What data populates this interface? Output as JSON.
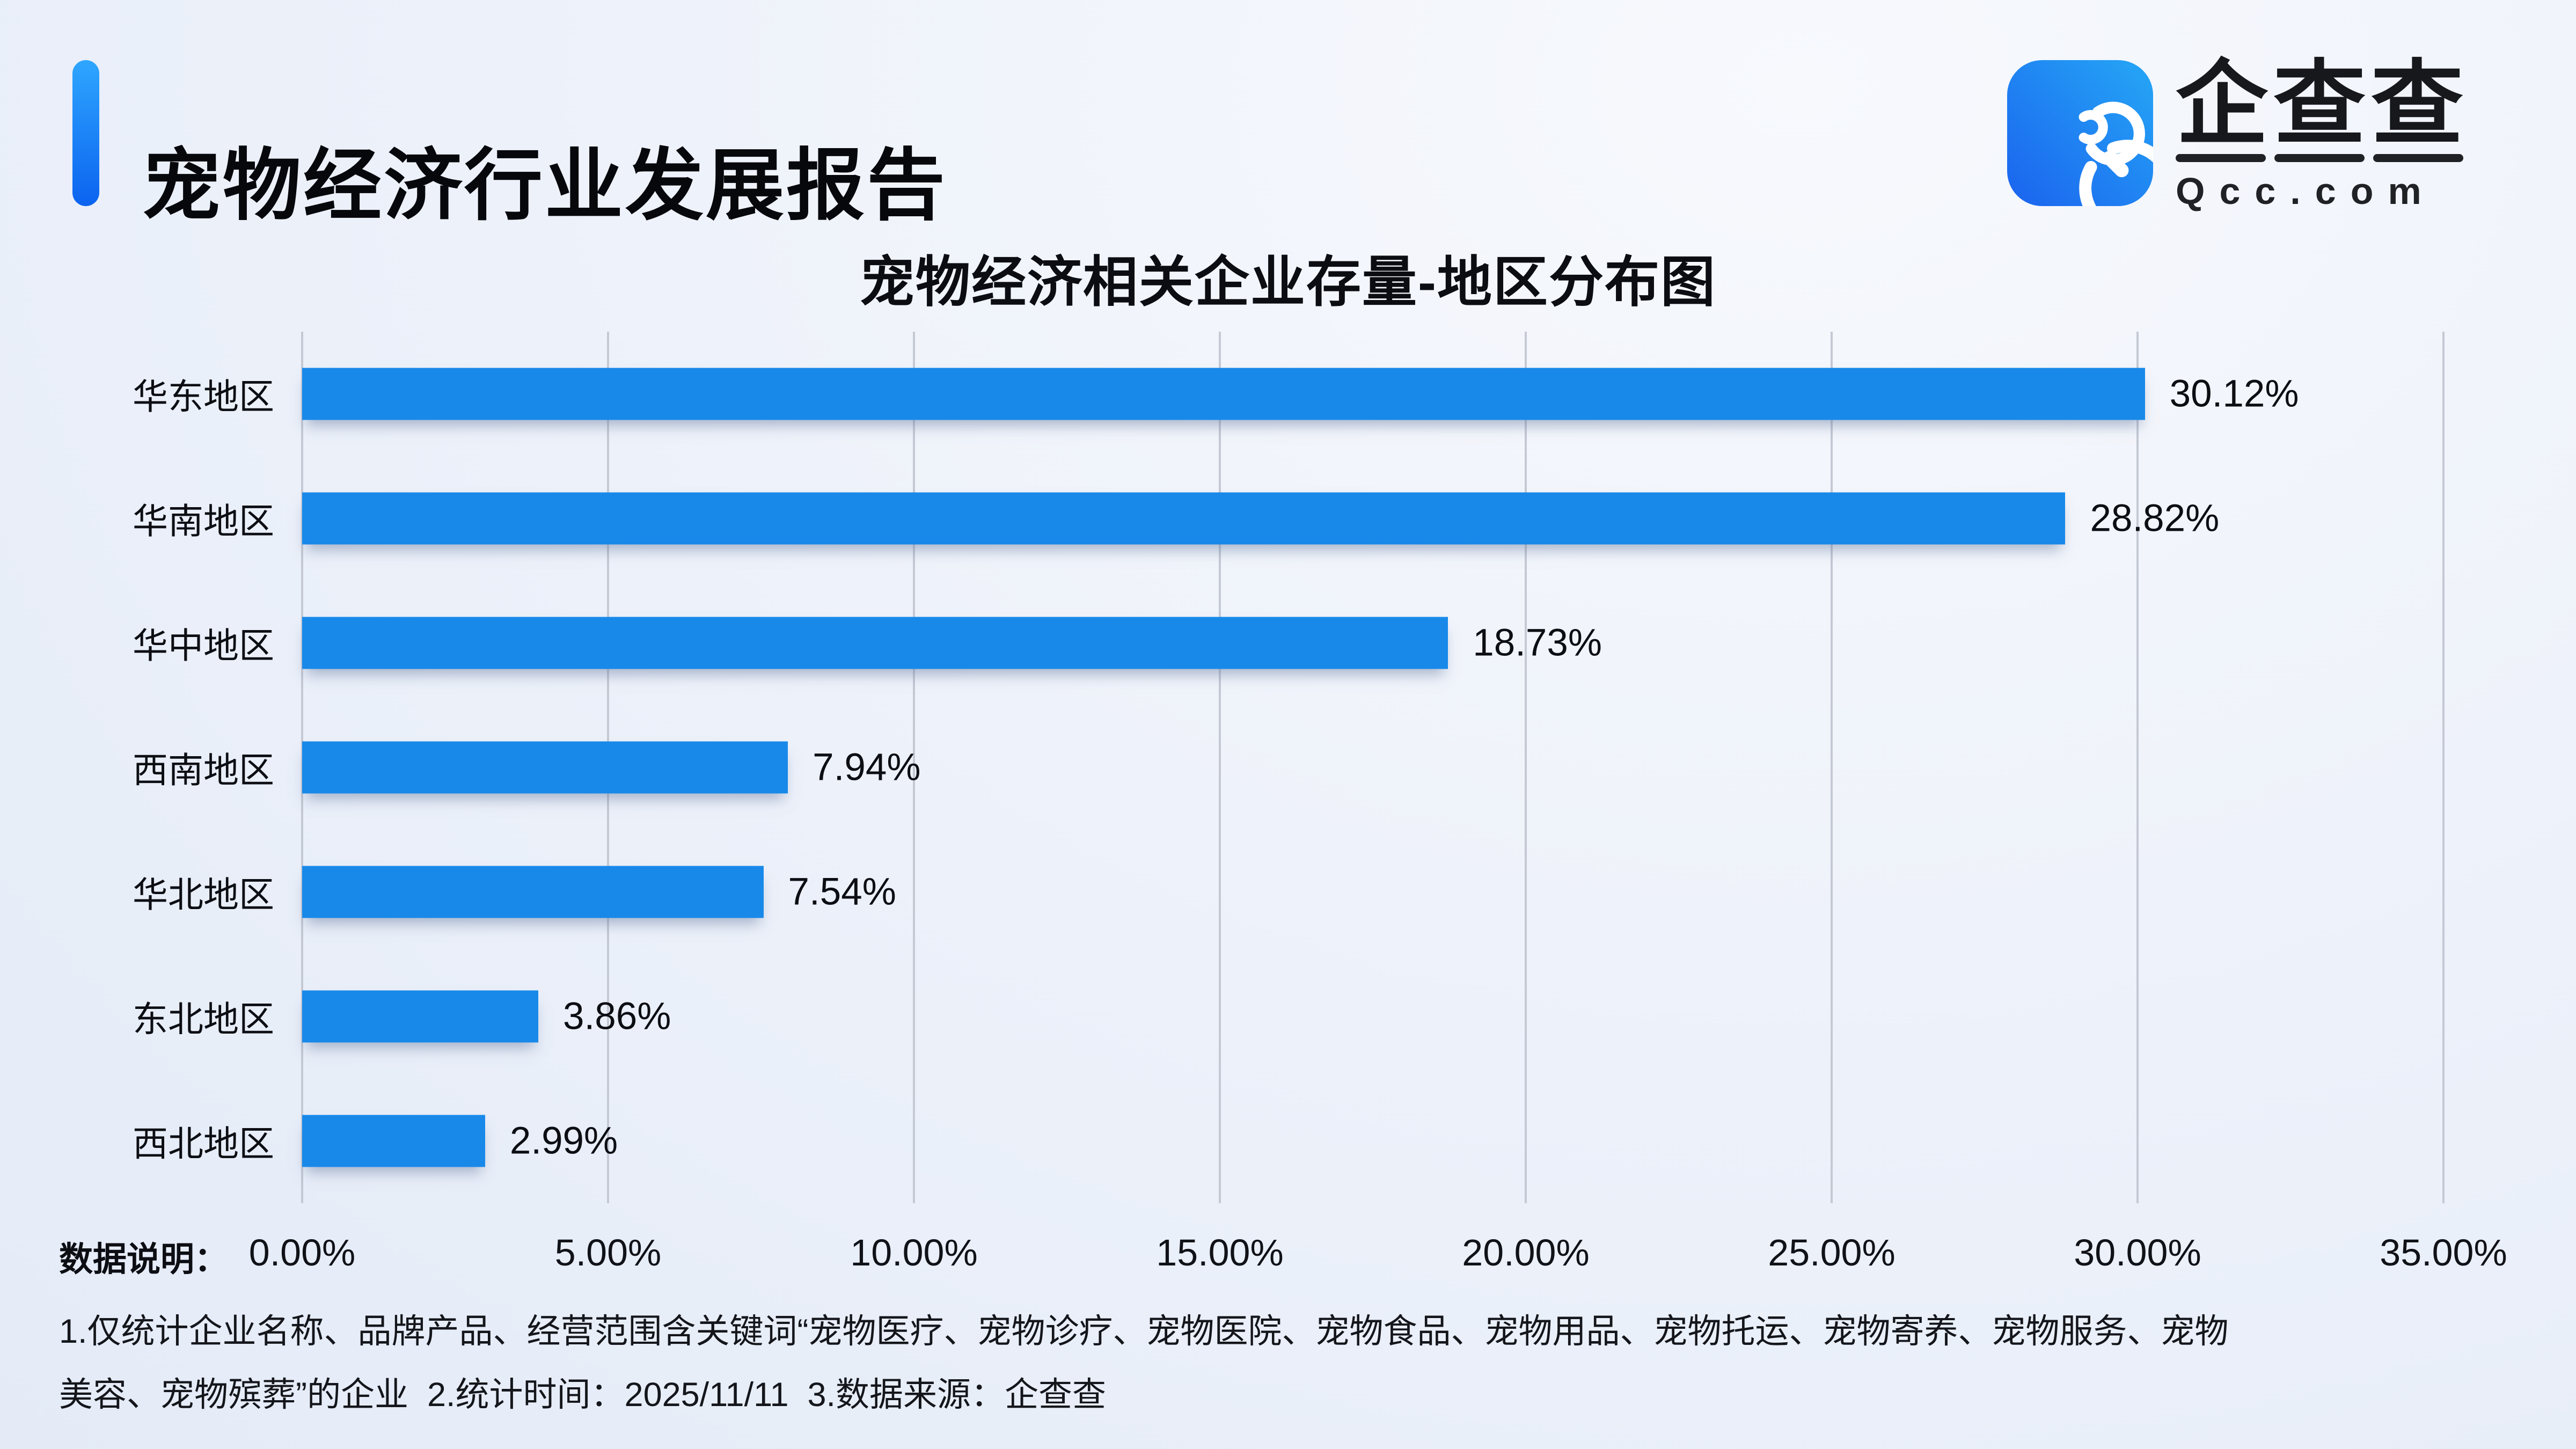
{
  "header": {
    "title": "宠物经济行业发展报告"
  },
  "logo": {
    "icon": "qcc-magnifier-icon",
    "brand_chars": [
      "企",
      "查",
      "查"
    ],
    "domain": "Qcc.com"
  },
  "chart_data": {
    "type": "bar",
    "orientation": "horizontal",
    "title": "宠物经济相关企业存量-地区分布图",
    "categories": [
      "华东地区",
      "华南地区",
      "华中地区",
      "西南地区",
      "华北地区",
      "东北地区",
      "西北地区"
    ],
    "values": [
      30.12,
      28.82,
      18.73,
      7.94,
      7.54,
      3.86,
      2.99
    ],
    "rows": [
      {
        "label": "华东地区",
        "value": 30.12,
        "value_label": "30.12%"
      },
      {
        "label": "华南地区",
        "value": 28.82,
        "value_label": "28.82%"
      },
      {
        "label": "华中地区",
        "value": 18.73,
        "value_label": "18.73%"
      },
      {
        "label": "西南地区",
        "value": 7.94,
        "value_label": "7.94%"
      },
      {
        "label": "华北地区",
        "value": 7.54,
        "value_label": "7.54%"
      },
      {
        "label": "东北地区",
        "value": 3.86,
        "value_label": "3.86%"
      },
      {
        "label": "西北地区",
        "value": 2.99,
        "value_label": "2.99%"
      }
    ],
    "xlim": [
      0,
      35
    ],
    "x_ticks": [
      0,
      5,
      10,
      15,
      20,
      25,
      30,
      35
    ],
    "x_tick_labels": [
      "0.00%",
      "5.00%",
      "10.00%",
      "15.00%",
      "20.00%",
      "25.00%",
      "30.00%",
      "35.00%"
    ],
    "grid": "vertical",
    "legend": "none"
  },
  "footer": {
    "label": "数据说明：",
    "notes": [
      "1.仅统计企业名称、品牌产品、经营范围含关键词“宠物医疗、宠物诊疗、宠物医院、宠物食品、宠物用品、宠物托运、宠物寄养、宠物服务、宠物",
      "美容、宠物殡葬”的企业  2.统计时间：2025/11/11  3.数据来源：企查查"
    ]
  },
  "theme": {
    "bar_color": "#1889E9",
    "grid_color": "#C4C9D4",
    "text_color": "#0C0E13",
    "accent_top": "#2FA6FF",
    "accent_bottom": "#0B63EF",
    "bg_start": "#F7F9FD",
    "bg_mid": "#EEF2FA",
    "bg_end": "#E4EBF7",
    "logo_gradient_start": "#1B63EE",
    "logo_gradient_end": "#25A7F6"
  }
}
